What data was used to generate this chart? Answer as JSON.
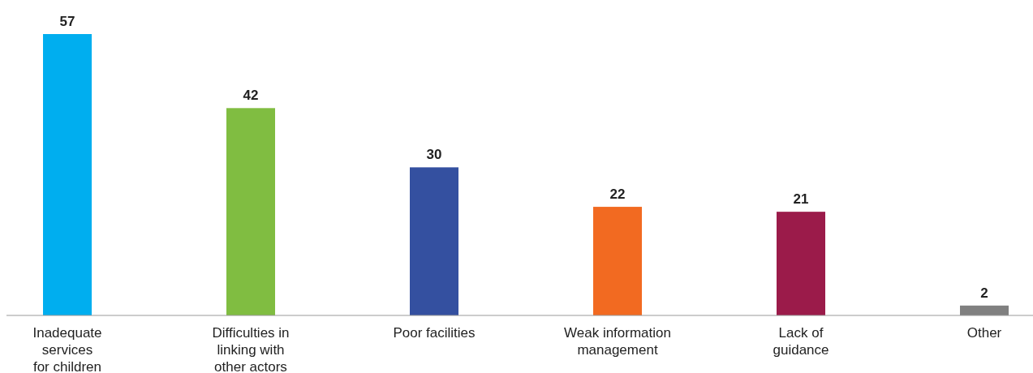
{
  "chart_data": {
    "type": "bar",
    "categories": [
      "Inadequate\nservices\nfor children",
      "Difficulties in\nlinking with\nother actors",
      "Poor facilities",
      "Weak information\nmanagement",
      "Lack of\nguidance",
      "Other"
    ],
    "values": [
      57,
      42,
      30,
      22,
      21,
      2
    ],
    "colors": [
      "#00aeef",
      "#80bd41",
      "#3450a0",
      "#f26a21",
      "#9b1b4a",
      "#808080"
    ],
    "data_labels": true
  }
}
